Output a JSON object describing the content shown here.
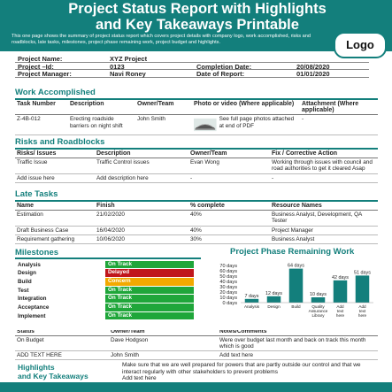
{
  "header": {
    "title_line1": "Project Status Report with Highlights",
    "title_line2": "and Key Takeaways Printable",
    "description": "This one page shows the summary of project status report which covers project details with company logo, work accomplished, risks and roadblocks, late tasks, milestones, project phase remaining work, project budget and highlights.",
    "logo": "Logo"
  },
  "info": {
    "project_name_label": "Project Name:",
    "project_name": "XYZ Project",
    "project_id_label": "Project –Id:",
    "project_id": "0123",
    "completion_label": "Completion Date:",
    "completion": "20/08/2020",
    "manager_label": "Project Manager:",
    "manager": "Navi Roney",
    "report_label": "Date of Report:",
    "report": "01/01/2020"
  },
  "work": {
    "title": "Work Accomplished",
    "headers": [
      "Task Number",
      "Description",
      "Owner/Team",
      "Photo or video (Where applicable)",
      "Attachment (Where applicable)"
    ],
    "row": [
      "Z-4B-012",
      "Erecting roadside barriers on night shift",
      "John Smith",
      "See full page photos attached at end of PDF",
      "-"
    ]
  },
  "risks": {
    "title": "Risks and Roadblocks",
    "headers": [
      "Risks/ Issues",
      "Description",
      "Owner/Team",
      "Fix / Corrective Action"
    ],
    "rows": [
      [
        "Traffic Issue",
        "Traffic Control issues",
        "Evan Wong",
        "Working through issues with council and road authorities to get it cleared Asap"
      ],
      [
        "Add issue here",
        "Add description here",
        "-",
        "-"
      ]
    ]
  },
  "late": {
    "title": "Late Tasks",
    "headers": [
      "Name",
      "Finish",
      "% complete",
      "Resource Names"
    ],
    "rows": [
      [
        "Estimation",
        "21/02/2020",
        "40%",
        "Business Analyst, Development, QA Tester"
      ],
      [
        "Draft Business Case",
        "16/04/2020",
        "40%",
        "Project Manager"
      ],
      [
        "Requirement gathering",
        "10/06/2020",
        "30%",
        "Business Analyst"
      ]
    ]
  },
  "milestones": {
    "title": "Milestones",
    "items": [
      {
        "name": "Analysis",
        "status": "On Track",
        "color": "#1fa63a"
      },
      {
        "name": "Design",
        "status": "Delayed",
        "color": "#c0161c"
      },
      {
        "name": "Build",
        "status": "Concern",
        "color": "#f2a900"
      },
      {
        "name": "Test",
        "status": "On Track",
        "color": "#1fa63a"
      },
      {
        "name": "Integration",
        "status": "On Track",
        "color": "#1fa63a"
      },
      {
        "name": "Acceptance",
        "status": "On Track",
        "color": "#1fa63a"
      },
      {
        "name": "Implement",
        "status": "On Track",
        "color": "#1fa63a"
      }
    ]
  },
  "chart_data": {
    "type": "bar",
    "title": "Project Phase Remaining Work",
    "categories": [
      "Analysis",
      "Design",
      "Build",
      "Quality Assurance Library",
      "Add text here",
      "Add text here"
    ],
    "values": [
      7,
      12,
      64,
      10,
      42,
      51
    ],
    "value_labels": [
      "7 days",
      "12 days",
      "64 days",
      "10 days",
      "42 days",
      "51 days"
    ],
    "y_ticks": [
      "0 days",
      "10 days",
      "20 days",
      "30 days",
      "40 days",
      "50 days",
      "60 days",
      "70 days"
    ],
    "ylim": [
      0,
      70
    ],
    "bar_color": "#137f7c"
  },
  "budget": {
    "headers": [
      "Status",
      "Owner/Team",
      "Notes/Comments"
    ],
    "rows": [
      [
        "On Budget",
        "Dave Hodgson",
        "Were over budget last month and back on track this month which is good"
      ],
      [
        "ADD TEXT HERE",
        "John Smith",
        "Add text here"
      ]
    ]
  },
  "highlights": {
    "title_line1": "Highlights",
    "title_line2": "and Key Takeaways",
    "text": "Make sure that we are well prepared for powers that are partly outside our control and that we interact regularly with other stakeholders to prevent problems",
    "extra": "Add text here"
  }
}
